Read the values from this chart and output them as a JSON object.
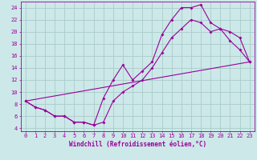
{
  "xlabel": "Windchill (Refroidissement éolien,°C)",
  "background_color": "#cce8e8",
  "grid_color": "#aacccc",
  "line_color": "#990099",
  "xlim": [
    -0.5,
    23.5
  ],
  "ylim": [
    3.5,
    25.0
  ],
  "yticks": [
    4,
    6,
    8,
    10,
    12,
    14,
    16,
    18,
    20,
    22,
    24
  ],
  "xticks": [
    0,
    1,
    2,
    3,
    4,
    5,
    6,
    7,
    8,
    9,
    10,
    11,
    12,
    13,
    14,
    15,
    16,
    17,
    18,
    19,
    20,
    21,
    22,
    23
  ],
  "line1_x": [
    0,
    1,
    2,
    3,
    4,
    5,
    6,
    7,
    8,
    9,
    10,
    11,
    12,
    13,
    14,
    15,
    16,
    17,
    18,
    19,
    20,
    21,
    22,
    23
  ],
  "line1_y": [
    8.5,
    7.5,
    7.0,
    6.0,
    6.0,
    5.0,
    5.0,
    4.5,
    9.0,
    12.0,
    14.5,
    12.0,
    13.5,
    15.0,
    19.5,
    22.0,
    24.0,
    24.0,
    24.5,
    21.5,
    20.5,
    18.5,
    17.0,
    15.0
  ],
  "line2_x": [
    0,
    1,
    2,
    3,
    4,
    5,
    6,
    7,
    8,
    9,
    10,
    11,
    12,
    13,
    14,
    15,
    16,
    17,
    18,
    19,
    20,
    21,
    22,
    23
  ],
  "line2_y": [
    8.5,
    7.5,
    7.0,
    6.0,
    6.0,
    5.0,
    5.0,
    4.5,
    5.0,
    8.5,
    10.0,
    11.0,
    12.0,
    14.0,
    16.5,
    19.0,
    20.5,
    22.0,
    21.5,
    20.0,
    20.5,
    20.0,
    19.0,
    15.0
  ],
  "line3_x": [
    0,
    23
  ],
  "line3_y": [
    8.5,
    15.0
  ],
  "tick_fontsize": 5.0,
  "xlabel_fontsize": 5.5,
  "marker_size": 2.0,
  "line_width": 0.8
}
